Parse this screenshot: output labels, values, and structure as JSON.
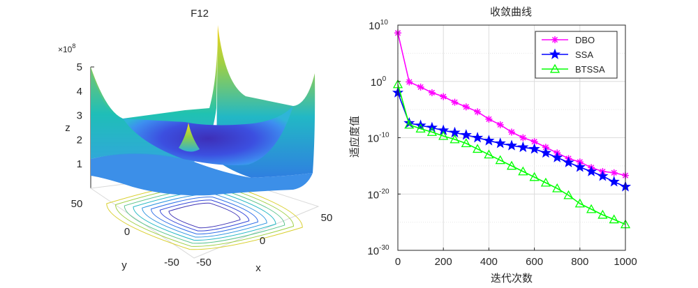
{
  "chart_data": [
    {
      "type": "surface",
      "title": "F12",
      "xlabel": "x",
      "ylabel": "y",
      "zlabel": "z",
      "z_exponent": "×10^8",
      "z_ticks": [
        "1",
        "2",
        "3",
        "4",
        "5"
      ],
      "x_ticks": [
        "-50",
        "0",
        "50"
      ],
      "y_ticks": [
        "-50",
        "0",
        "50"
      ],
      "xlim": [
        -50,
        50
      ],
      "ylim": [
        -50,
        50
      ],
      "zlim": [
        0,
        5
      ],
      "colormap": "parula",
      "has_contour_base": true
    },
    {
      "type": "line",
      "title": "收敛曲线",
      "xlabel": "迭代次数",
      "ylabel": "适应度值",
      "yscale": "log",
      "xlim": [
        0,
        1000
      ],
      "ylim": [
        1e-30,
        10000000000.0
      ],
      "x_ticks": [
        "0",
        "200",
        "400",
        "600",
        "800",
        "1000"
      ],
      "y_ticks": [
        {
          "base": "10",
          "exp": "10",
          "value": 10000000000.0
        },
        {
          "base": "10",
          "exp": "0",
          "value": 1
        },
        {
          "base": "10",
          "exp": "-10",
          "value": 1e-10
        },
        {
          "base": "10",
          "exp": "-20",
          "value": 1e-20
        },
        {
          "base": "10",
          "exp": "-30",
          "value": 1e-30
        }
      ],
      "grid": true,
      "legend_position": "top-right",
      "series": [
        {
          "name": "DBO",
          "color": "#ff00ff",
          "marker": "asterisk",
          "points": [
            [
              0,
              400000000.0
            ],
            [
              50,
              0.8
            ],
            [
              100,
              0.1
            ],
            [
              150,
              0.01
            ],
            [
              200,
              0.002
            ],
            [
              250,
              0.0002
            ],
            [
              300,
              3e-05
            ],
            [
              350,
              4e-06
            ],
            [
              400,
              2e-07
            ],
            [
              450,
              2e-08
            ],
            [
              500,
              1e-09
            ],
            [
              550,
              1e-10
            ],
            [
              600,
              2e-11
            ],
            [
              650,
              2e-12
            ],
            [
              700,
              2e-13
            ],
            [
              750,
              2e-14
            ],
            [
              800,
              5e-15
            ],
            [
              850,
              5e-16
            ],
            [
              900,
              1e-16
            ],
            [
              950,
              6e-17
            ],
            [
              1000,
              2e-17
            ]
          ]
        },
        {
          "name": "SSA",
          "color": "#0000ff",
          "marker": "pentagram",
          "points": [
            [
              0,
              0.01
            ],
            [
              50,
              4e-08
            ],
            [
              100,
              1.5e-08
            ],
            [
              150,
              6e-09
            ],
            [
              200,
              2e-09
            ],
            [
              250,
              8e-10
            ],
            [
              300,
              3e-10
            ],
            [
              350,
              1e-10
            ],
            [
              400,
              3e-11
            ],
            [
              450,
              1e-11
            ],
            [
              500,
              4e-12
            ],
            [
              550,
              2e-12
            ],
            [
              600,
              1e-12
            ],
            [
              650,
              2e-13
            ],
            [
              700,
              3e-14
            ],
            [
              750,
              4e-15
            ],
            [
              800,
              6e-16
            ],
            [
              850,
              1e-16
            ],
            [
              900,
              1.5e-17
            ],
            [
              950,
              1.5e-18
            ],
            [
              1000,
              2e-19
            ]
          ]
        },
        {
          "name": "BTSSA",
          "color": "#00ff00",
          "marker": "triangle",
          "points": [
            [
              0,
              0.3
            ],
            [
              50,
              2e-08
            ],
            [
              100,
              4e-09
            ],
            [
              150,
              1e-09
            ],
            [
              200,
              2e-10
            ],
            [
              250,
              5e-11
            ],
            [
              300,
              1e-11
            ],
            [
              350,
              1e-12
            ],
            [
              400,
              1e-13
            ],
            [
              450,
              1e-14
            ],
            [
              500,
              1e-15
            ],
            [
              550,
              1e-16
            ],
            [
              600,
              1e-17
            ],
            [
              650,
              1e-18
            ],
            [
              700,
              1e-19
            ],
            [
              750,
              6e-21
            ],
            [
              800,
              2e-22
            ],
            [
              850,
              2e-23
            ],
            [
              900,
              2e-24
            ],
            [
              950,
              3e-25
            ],
            [
              1000,
              4e-26
            ]
          ]
        }
      ]
    }
  ]
}
